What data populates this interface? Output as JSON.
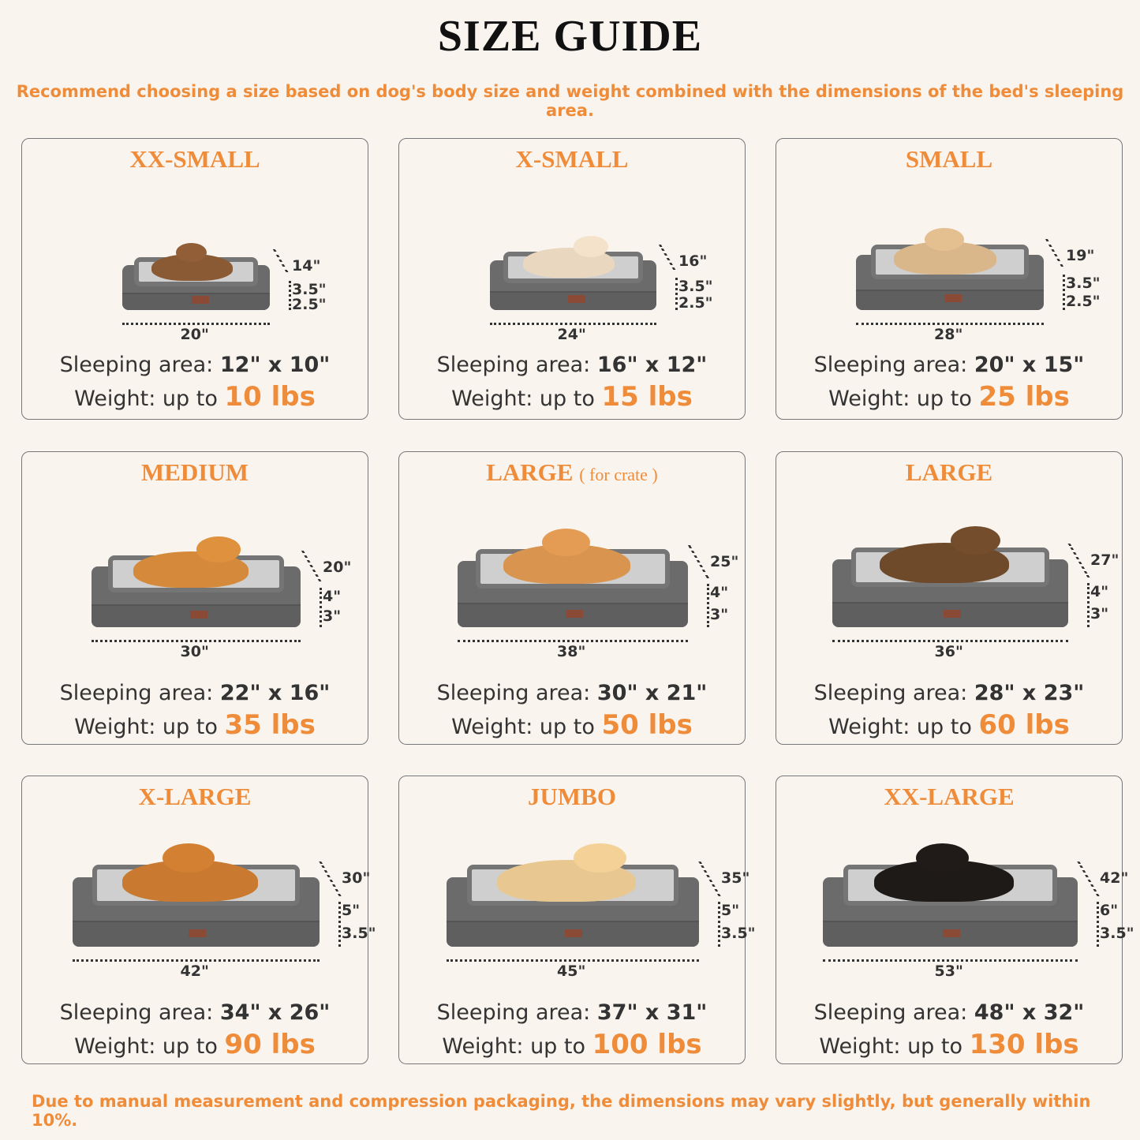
{
  "header": {
    "title": "SIZE GUIDE",
    "subtitle": "Recommend choosing a size based on dog's body size and weight combined with the dimensions of the bed's sleeping area."
  },
  "footer": "Due to manual measurement and compression packaging, the dimensions may vary slightly, but generally within 10%.",
  "colors": {
    "accent": "#ef8c3a",
    "background": "#faf4ef",
    "bed": "#6b6b6b"
  },
  "sizes": [
    {
      "name": "XX-SMALL",
      "note": "",
      "pet": "cat",
      "width": "20\"",
      "depth": "14\"",
      "bolster": "3.5\"",
      "base": "2.5\"",
      "area_label": "Sleeping area:",
      "area": "12\" x 10\"",
      "weight_label": "Weight:  up to",
      "weight": "10 lbs"
    },
    {
      "name": "X-SMALL",
      "note": "",
      "pet": "small dog",
      "width": "24\"",
      "depth": "16\"",
      "bolster": "3.5\"",
      "base": "2.5\"",
      "area_label": "Sleeping area:",
      "area": "16\" x 12\"",
      "weight_label": "Weight: up to",
      "weight": "15 lbs"
    },
    {
      "name": "SMALL",
      "note": "",
      "pet": "french bulldog",
      "width": "28\"",
      "depth": "19\"",
      "bolster": "3.5\"",
      "base": "2.5\"",
      "area_label": "Sleeping area:",
      "area": "20\" x 15\"",
      "weight_label": "Weight: up to",
      "weight": "25 lbs"
    },
    {
      "name": "MEDIUM",
      "note": "",
      "pet": "corgi",
      "width": "30\"",
      "depth": "20\"",
      "bolster": "4\"",
      "base": "3\"",
      "area_label": "Sleeping area:",
      "area": "22\" x 16\"",
      "weight_label": "Weight: up to",
      "weight": "35 lbs"
    },
    {
      "name": "LARGE",
      "note": "( for crate )",
      "pet": "shiba inu",
      "width": "38\"",
      "depth": "25\"",
      "bolster": "4\"",
      "base": "3\"",
      "area_label": "Sleeping area:",
      "area": "30\" x 21\"",
      "weight_label": "Weight: up to",
      "weight": "50 lbs"
    },
    {
      "name": "LARGE",
      "note": "",
      "pet": "shepherd",
      "width": "36\"",
      "depth": "27\"",
      "bolster": "4\"",
      "base": "3\"",
      "area_label": "Sleeping area:",
      "area": "28\" x 23\"",
      "weight_label": "Weight: up to",
      "weight": "60 lbs"
    },
    {
      "name": "X-LARGE",
      "note": "",
      "pet": "golden retriever",
      "width": "42\"",
      "depth": "30\"",
      "bolster": "5\"",
      "base": "3.5\"",
      "area_label": "Sleeping area:",
      "area": "34\" x 26\"",
      "weight_label": "Weight: up to",
      "weight": "90 lbs"
    },
    {
      "name": "JUMBO",
      "note": "",
      "pet": "labrador",
      "width": "45\"",
      "depth": "35\"",
      "bolster": "5\"",
      "base": "3.5\"",
      "area_label": "Sleeping area:",
      "area": "37\" x 31\"",
      "weight_label": "Weight: up to",
      "weight": "100 lbs"
    },
    {
      "name": "XX-LARGE",
      "note": "",
      "pet": "rottweiler",
      "width": "53\"",
      "depth": "42\"",
      "bolster": "6\"",
      "base": "3.5\"",
      "area_label": "Sleeping area:",
      "area": "48\" x 32\"",
      "weight_label": "Weight: up to",
      "weight": "130 lbs"
    }
  ]
}
